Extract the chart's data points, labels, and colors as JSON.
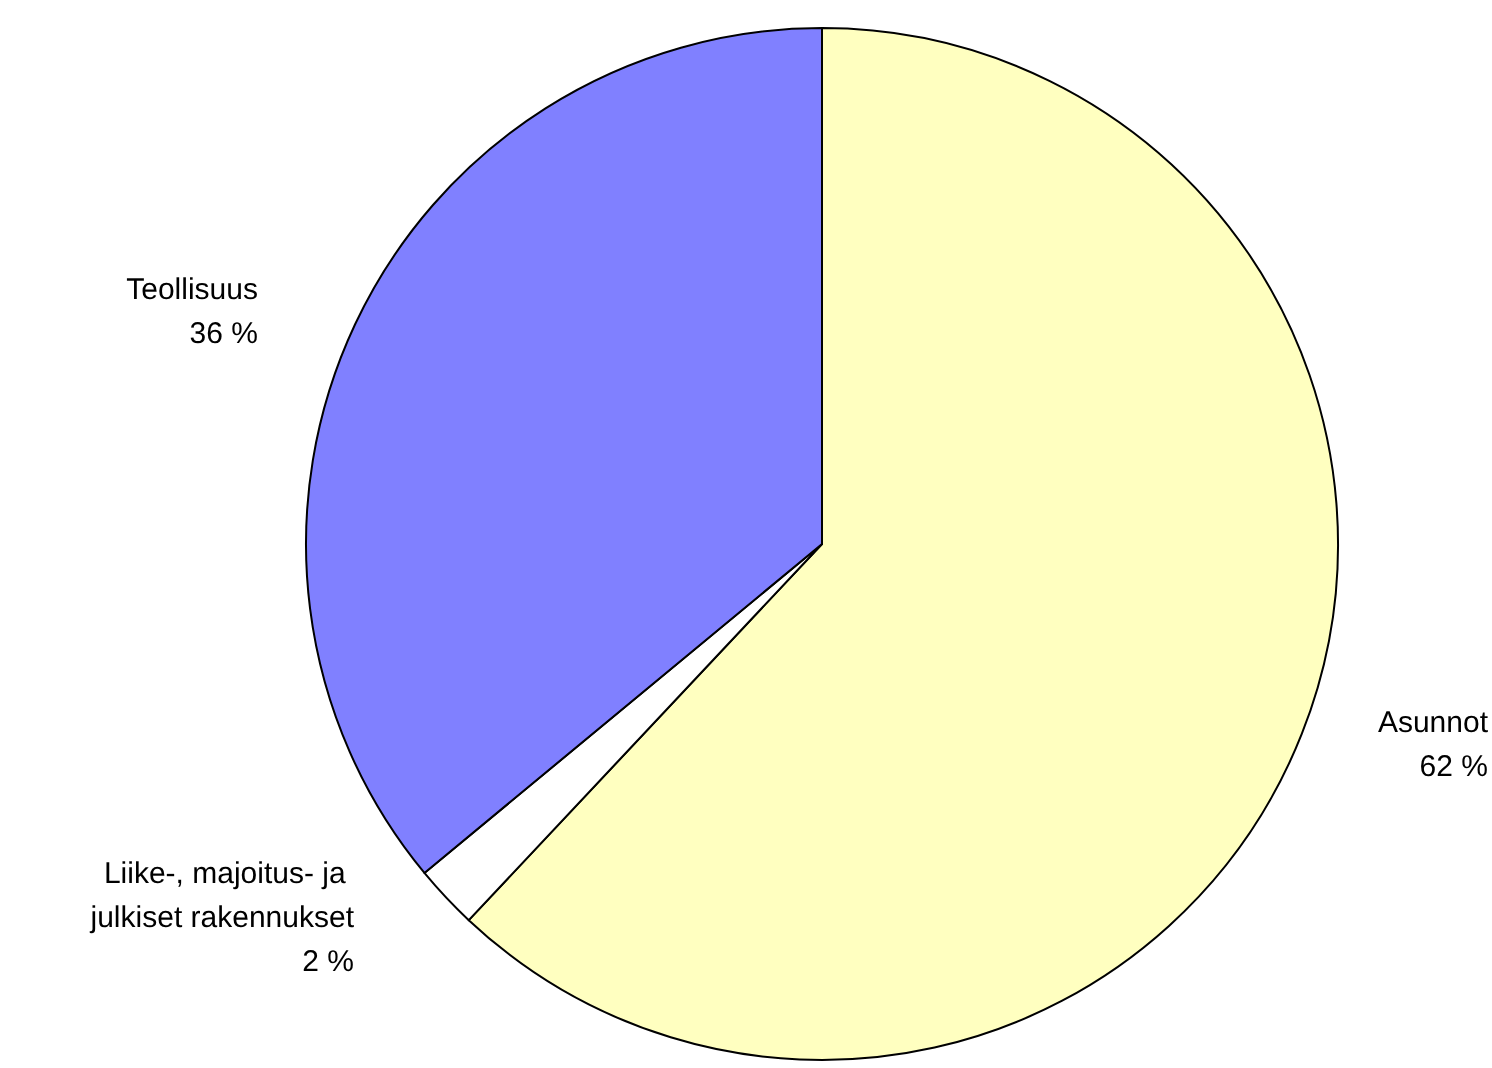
{
  "chart_data": {
    "type": "pie",
    "categories": [
      "Asunnot",
      "Liike-, majoitus- ja julkiset rakennukset",
      "Teollisuus"
    ],
    "values": [
      62,
      2,
      36
    ],
    "colors": [
      "#ffffc0",
      "#ffffff",
      "#8080ff"
    ],
    "value_labels": [
      "62 %",
      "2 %",
      "36 %"
    ]
  }
}
